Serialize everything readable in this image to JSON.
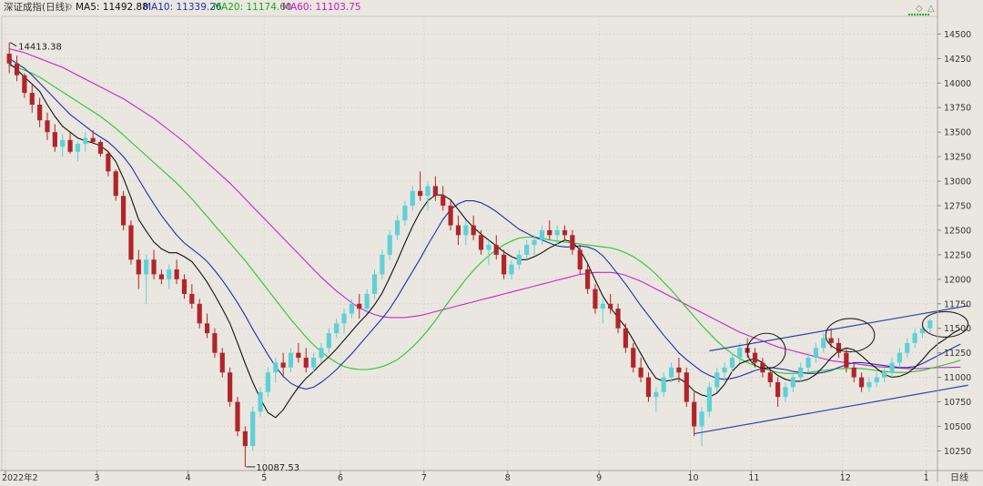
{
  "header": {
    "title": "深证成指(日线)",
    "ma5": "MA5: 11492.88",
    "ma10": "MA10: 11339.26",
    "ma20": "MA20: 11174.60",
    "ma60": "MA60: 11103.75"
  },
  "colors": {
    "background": "#e9e7df",
    "up": "#5fd0d8",
    "down": "#b1242a",
    "ma5": "#111111",
    "ma10": "#1f2fb5",
    "ma20": "#28c828",
    "ma60": "#d020d0",
    "channel": "#3040b0",
    "grid": "#cfccc2"
  },
  "annotations": {
    "high_label": "14413.38",
    "low_label": "10087.53",
    "period_label": "日线"
  },
  "chart_data": {
    "type": "candlestick",
    "title": "深证成指(日线)",
    "ylim": [
      10050,
      14680
    ],
    "y_ticks": [
      10250,
      10500,
      10750,
      11000,
      11250,
      11500,
      11750,
      12000,
      12250,
      12500,
      12750,
      13000,
      13250,
      13500,
      13750,
      14000,
      14250,
      14500
    ],
    "x_ticks": [
      {
        "label": "2022年2",
        "day": 0
      },
      {
        "label": "3",
        "day": 12
      },
      {
        "label": "4",
        "day": 24
      },
      {
        "label": "5",
        "day": 34
      },
      {
        "label": "6",
        "day": 44
      },
      {
        "label": "7",
        "day": 55
      },
      {
        "label": "8",
        "day": 66
      },
      {
        "label": "9",
        "day": 78
      },
      {
        "label": "10",
        "day": 90
      },
      {
        "label": "11",
        "day": 98
      },
      {
        "label": "12",
        "day": 110
      },
      {
        "label": "1",
        "day": 121
      }
    ],
    "candles": [
      [
        14300,
        14413,
        14100,
        14200
      ],
      [
        14200,
        14280,
        14020,
        14080
      ],
      [
        14080,
        14100,
        13850,
        13900
      ],
      [
        13900,
        14000,
        13700,
        13780
      ],
      [
        13780,
        13850,
        13550,
        13620
      ],
      [
        13620,
        13700,
        13420,
        13500
      ],
      [
        13500,
        13580,
        13300,
        13350
      ],
      [
        13350,
        13480,
        13250,
        13420
      ],
      [
        13420,
        13500,
        13280,
        13300
      ],
      [
        13300,
        13400,
        13200,
        13380
      ],
      [
        13380,
        13500,
        13300,
        13440
      ],
      [
        13440,
        13520,
        13380,
        13400
      ],
      [
        13400,
        13420,
        13250,
        13280
      ],
      [
        13280,
        13300,
        13050,
        13100
      ],
      [
        13100,
        13120,
        12800,
        12850
      ],
      [
        12850,
        12900,
        12500,
        12550
      ],
      [
        12550,
        12600,
        12150,
        12200
      ],
      [
        12200,
        12300,
        11900,
        12050
      ],
      [
        12050,
        12250,
        11750,
        12200
      ],
      [
        12200,
        12300,
        12000,
        12050
      ],
      [
        12050,
        12100,
        11950,
        12000
      ],
      [
        12000,
        12150,
        11900,
        12100
      ],
      [
        12100,
        12200,
        11950,
        12000
      ],
      [
        12000,
        12050,
        11800,
        11850
      ],
      [
        11850,
        11950,
        11700,
        11750
      ],
      [
        11750,
        11800,
        11500,
        11550
      ],
      [
        11550,
        11650,
        11400,
        11450
      ],
      [
        11450,
        11500,
        11200,
        11250
      ],
      [
        11250,
        11300,
        11000,
        11050
      ],
      [
        11050,
        11100,
        10700,
        10750
      ],
      [
        10750,
        10800,
        10400,
        10450
      ],
      [
        10450,
        10500,
        10087,
        10300
      ],
      [
        10300,
        10700,
        10250,
        10650
      ],
      [
        10650,
        10900,
        10600,
        10850
      ],
      [
        10850,
        11100,
        10800,
        11050
      ],
      [
        11050,
        11200,
        10950,
        11150
      ],
      [
        11150,
        11250,
        11000,
        11100
      ],
      [
        11100,
        11300,
        11050,
        11250
      ],
      [
        11250,
        11350,
        11150,
        11200
      ],
      [
        11200,
        11300,
        11050,
        11100
      ],
      [
        11100,
        11250,
        11050,
        11200
      ],
      [
        11200,
        11350,
        11150,
        11300
      ],
      [
        11300,
        11500,
        11250,
        11450
      ],
      [
        11450,
        11600,
        11400,
        11550
      ],
      [
        11550,
        11700,
        11450,
        11650
      ],
      [
        11650,
        11800,
        11600,
        11750
      ],
      [
        11750,
        11850,
        11600,
        11700
      ],
      [
        11700,
        11900,
        11650,
        11850
      ],
      [
        11850,
        12100,
        11800,
        12050
      ],
      [
        12050,
        12300,
        12000,
        12250
      ],
      [
        12250,
        12500,
        12200,
        12450
      ],
      [
        12450,
        12650,
        12400,
        12600
      ],
      [
        12600,
        12800,
        12550,
        12750
      ],
      [
        12750,
        12950,
        12700,
        12900
      ],
      [
        12900,
        13100,
        12800,
        12850
      ],
      [
        12850,
        13000,
        12700,
        12950
      ],
      [
        12950,
        13050,
        12800,
        12850
      ],
      [
        12850,
        12950,
        12700,
        12750
      ],
      [
        12750,
        12800,
        12500,
        12550
      ],
      [
        12550,
        12650,
        12350,
        12450
      ],
      [
        12450,
        12600,
        12350,
        12550
      ],
      [
        12550,
        12650,
        12400,
        12450
      ],
      [
        12450,
        12500,
        12250,
        12300
      ],
      [
        12300,
        12400,
        12150,
        12350
      ],
      [
        12350,
        12450,
        12200,
        12250
      ],
      [
        12250,
        12300,
        12000,
        12050
      ],
      [
        12050,
        12200,
        12000,
        12150
      ],
      [
        12150,
        12300,
        12100,
        12250
      ],
      [
        12250,
        12400,
        12200,
        12350
      ],
      [
        12350,
        12450,
        12250,
        12400
      ],
      [
        12400,
        12550,
        12350,
        12500
      ],
      [
        12500,
        12600,
        12400,
        12450
      ],
      [
        12450,
        12550,
        12350,
        12500
      ],
      [
        12500,
        12550,
        12400,
        12450
      ],
      [
        12450,
        12500,
        12250,
        12300
      ],
      [
        12300,
        12350,
        12050,
        12100
      ],
      [
        12100,
        12150,
        11850,
        11900
      ],
      [
        11900,
        11950,
        11650,
        11700
      ],
      [
        11700,
        11800,
        11550,
        11750
      ],
      [
        11750,
        11850,
        11650,
        11700
      ],
      [
        11700,
        11750,
        11450,
        11500
      ],
      [
        11500,
        11550,
        11250,
        11300
      ],
      [
        11300,
        11350,
        11050,
        11100
      ],
      [
        11100,
        11200,
        10950,
        11000
      ],
      [
        11000,
        11050,
        10750,
        10800
      ],
      [
        10800,
        10900,
        10650,
        10850
      ],
      [
        10850,
        11050,
        10800,
        11000
      ],
      [
        11000,
        11150,
        10950,
        11100
      ],
      [
        11100,
        11200,
        10950,
        11050
      ],
      [
        11050,
        11100,
        10700,
        10750
      ],
      [
        10750,
        10850,
        10400,
        10500
      ],
      [
        10500,
        10700,
        10300,
        10650
      ],
      [
        10650,
        10950,
        10600,
        10900
      ],
      [
        10900,
        11100,
        10850,
        11050
      ],
      [
        11050,
        11150,
        10950,
        11100
      ],
      [
        11100,
        11250,
        11050,
        11200
      ],
      [
        11200,
        11350,
        11150,
        11300
      ],
      [
        11300,
        11400,
        11200,
        11250
      ],
      [
        11250,
        11300,
        11100,
        11150
      ],
      [
        11150,
        11200,
        11000,
        11050
      ],
      [
        11050,
        11100,
        10900,
        10950
      ],
      [
        10950,
        11000,
        10700,
        10800
      ],
      [
        10800,
        10950,
        10750,
        10900
      ],
      [
        10900,
        11050,
        10850,
        11000
      ],
      [
        11000,
        11150,
        10950,
        11100
      ],
      [
        11100,
        11250,
        11050,
        11200
      ],
      [
        11200,
        11350,
        11150,
        11300
      ],
      [
        11300,
        11450,
        11250,
        11400
      ],
      [
        11400,
        11500,
        11300,
        11350
      ],
      [
        11350,
        11400,
        11200,
        11250
      ],
      [
        11250,
        11300,
        11050,
        11100
      ],
      [
        11100,
        11150,
        10950,
        11000
      ],
      [
        11000,
        11050,
        10850,
        10900
      ],
      [
        10900,
        11000,
        10850,
        10950
      ],
      [
        10950,
        11050,
        10900,
        11000
      ],
      [
        11000,
        11100,
        10950,
        11050
      ],
      [
        11050,
        11200,
        11000,
        11150
      ],
      [
        11150,
        11300,
        11100,
        11250
      ],
      [
        11250,
        11400,
        11200,
        11350
      ],
      [
        11350,
        11500,
        11300,
        11450
      ],
      [
        11450,
        11550,
        11400,
        11500
      ],
      [
        11500,
        11600,
        11450,
        11580
      ]
    ],
    "ma5": [
      14200,
      14140,
      14060,
      13990,
      13916,
      13780,
      13660,
      13560,
      13500,
      13440,
      13410,
      13390,
      13360,
      13300,
      13200,
      13030,
      12830,
      12610,
      12490,
      12380,
      12310,
      12270,
      12270,
      12230,
      12180,
      12080,
      11970,
      11840,
      11700,
      11550,
      11350,
      11140,
      10950,
      10780,
      10640,
      10590,
      10670,
      10790,
      10900,
      10990,
      11060,
      11140,
      11210,
      11290,
      11380,
      11470,
      11560,
      11640,
      11740,
      11860,
      12020,
      12190,
      12370,
      12540,
      12690,
      12800,
      12860,
      12860,
      12810,
      12710,
      12610,
      12530,
      12460,
      12400,
      12340,
      12280,
      12230,
      12200,
      12200,
      12230,
      12270,
      12320,
      12360,
      12400,
      12380,
      12300,
      12160,
      11990,
      11830,
      11710,
      11610,
      11510,
      11380,
      11240,
      11100,
      10990,
      10960,
      10970,
      10990,
      10940,
      10860,
      10820,
      10800,
      10840,
      10930,
      11060,
      11140,
      11170,
      11190,
      11150,
      11080,
      11020,
      10980,
      10960,
      10960,
      10980,
      11030,
      11110,
      11200,
      11270,
      11300,
      11280,
      11220,
      11150,
      11090,
      11030,
      11000,
      11010,
      11040,
      11100,
      11180,
      11270,
      11340,
      11390,
      11450,
      11493
    ],
    "ma10": [
      14250,
      14200,
      14150,
      14080,
      14000,
      13920,
      13840,
      13760,
      13680,
      13620,
      13560,
      13500,
      13450,
      13400,
      13330,
      13250,
      13150,
      13020,
      12890,
      12770,
      12650,
      12550,
      12450,
      12370,
      12310,
      12250,
      12180,
      12090,
      11990,
      11880,
      11760,
      11630,
      11490,
      11360,
      11230,
      11110,
      11010,
      10940,
      10900,
      10880,
      10900,
      10950,
      11010,
      11080,
      11160,
      11240,
      11330,
      11420,
      11510,
      11600,
      11700,
      11820,
      11950,
      12080,
      12210,
      12350,
      12480,
      12610,
      12710,
      12770,
      12800,
      12800,
      12780,
      12740,
      12690,
      12630,
      12570,
      12510,
      12470,
      12430,
      12400,
      12370,
      12340,
      12330,
      12330,
      12340,
      12330,
      12300,
      12240,
      12150,
      12050,
      11950,
      11840,
      11730,
      11630,
      11530,
      11430,
      11340,
      11250,
      11180,
      11120,
      11060,
      11020,
      10990,
      10980,
      10990,
      11010,
      11040,
      11070,
      11090,
      11100,
      11090,
      11080,
      11060,
      11050,
      11040,
      11040,
      11050,
      11070,
      11100,
      11130,
      11150,
      11150,
      11140,
      11130,
      11120,
      11110,
      11100,
      11100,
      11110,
      11140,
      11180,
      11220,
      11260,
      11300,
      11339
    ],
    "ma20": [
      14180,
      14160,
      14130,
      14100,
      14060,
      14010,
      13960,
      13910,
      13860,
      13810,
      13760,
      13710,
      13660,
      13600,
      13540,
      13470,
      13400,
      13330,
      13260,
      13190,
      13120,
      13050,
      12980,
      12900,
      12820,
      12730,
      12640,
      12550,
      12460,
      12370,
      12280,
      12190,
      12090,
      11990,
      11890,
      11790,
      11690,
      11590,
      11500,
      11410,
      11330,
      11260,
      11200,
      11150,
      11110,
      11090,
      11080,
      11080,
      11090,
      11110,
      11140,
      11180,
      11240,
      11310,
      11390,
      11480,
      11580,
      11690,
      11800,
      11900,
      12000,
      12090,
      12170,
      12240,
      12300,
      12350,
      12390,
      12420,
      12430,
      12430,
      12420,
      12400,
      12390,
      12380,
      12370,
      12360,
      12350,
      12340,
      12330,
      12320,
      12300,
      12270,
      12230,
      12180,
      12120,
      12050,
      11970,
      11890,
      11800,
      11710,
      11620,
      11530,
      11450,
      11370,
      11300,
      11240,
      11190,
      11150,
      11120,
      11090,
      11070,
      11050,
      11040,
      11040,
      11040,
      11050,
      11060,
      11070,
      11080,
      11090,
      11090,
      11090,
      11090,
      11080,
      11070,
      11060,
      11050,
      11050,
      11050,
      11060,
      11070,
      11090,
      11110,
      11130,
      11150,
      11175
    ],
    "ma60": [
      14350,
      14330,
      14310,
      14280,
      14250,
      14220,
      14190,
      14160,
      14120,
      14080,
      14040,
      14000,
      13960,
      13920,
      13880,
      13840,
      13790,
      13740,
      13690,
      13640,
      13580,
      13520,
      13460,
      13400,
      13330,
      13260,
      13190,
      13120,
      13050,
      12980,
      12900,
      12820,
      12740,
      12660,
      12580,
      12500,
      12420,
      12340,
      12260,
      12180,
      12100,
      12020,
      11950,
      11880,
      11820,
      11760,
      11710,
      11670,
      11640,
      11620,
      11610,
      11610,
      11610,
      11620,
      11630,
      11650,
      11670,
      11690,
      11710,
      11730,
      11750,
      11770,
      11790,
      11810,
      11830,
      11850,
      11870,
      11890,
      11910,
      11930,
      11950,
      11970,
      11990,
      12010,
      12030,
      12050,
      12060,
      12070,
      12070,
      12070,
      12060,
      12040,
      12010,
      11980,
      11940,
      11900,
      11860,
      11820,
      11780,
      11740,
      11700,
      11660,
      11620,
      11580,
      11540,
      11500,
      11460,
      11430,
      11400,
      11370,
      11340,
      11310,
      11290,
      11270,
      11250,
      11230,
      11210,
      11190,
      11170,
      11160,
      11150,
      11140,
      11130,
      11120,
      11110,
      11105,
      11100,
      11095,
      11090,
      11090,
      11090,
      11095,
      11100,
      11100,
      11102,
      11104
    ],
    "channel": {
      "lower": [
        [
          90,
          10425
        ],
        [
          126,
          10920
        ]
      ],
      "upper": [
        [
          92,
          11270
        ],
        [
          126,
          11730
        ]
      ]
    },
    "ellipses": [
      {
        "center_day": 99.5,
        "center_value": 11270,
        "days": 2.5,
        "values": 180
      },
      {
        "center_day": 110.5,
        "center_value": 11430,
        "days": 3.2,
        "values": 170
      },
      {
        "center_day": 123.0,
        "center_value": 11540,
        "days": 3.0,
        "values": 130
      }
    ],
    "extremes": {
      "high": {
        "day": 0,
        "value": 14413.38
      },
      "low": {
        "day": 31,
        "value": 10087.53
      }
    },
    "xlabel": "",
    "ylabel": ""
  }
}
